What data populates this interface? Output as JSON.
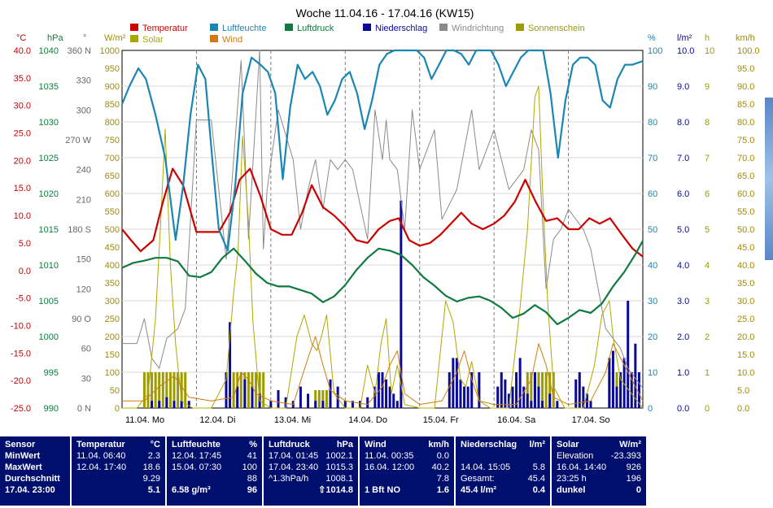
{
  "chart_data": {
    "type": "line",
    "title": "Woche 11.04.16 - 17.04.16 (KW15)",
    "x_ticks": [
      "11.04.  Mo",
      "12.04.  Di",
      "13.04.  Mi",
      "14.04.  Do",
      "15.04.  Fr",
      "16.04.  Sa",
      "17.04.  So"
    ],
    "legend": [
      {
        "name": "Temperatur",
        "color": "#cc0000"
      },
      {
        "name": "Luftfeuchte",
        "color": "#1a86b4"
      },
      {
        "name": "Luftdruck",
        "color": "#107a40"
      },
      {
        "name": "Niederschlag",
        "color": "#0a0a9a"
      },
      {
        "name": "Windrichtung",
        "color": "#8a8a8a"
      },
      {
        "name": "Sonnenschein",
        "color": "#9c9c00"
      },
      {
        "name": "Solar",
        "color": "#a8a800"
      },
      {
        "name": "Wind",
        "color": "#d07a10"
      }
    ],
    "axes": {
      "temp": {
        "unit": "°C",
        "color": "#cc0000",
        "ticks": [
          "40.0",
          "35.0",
          "30.0",
          "25.0",
          "20.0",
          "15.0",
          "10.0",
          "5.0",
          "0.0",
          "-5.0",
          "-10.0",
          "-15.0",
          "-20.0",
          "-25.0"
        ],
        "range": [
          -25,
          40
        ]
      },
      "pressure": {
        "unit": "hPa",
        "color": "#107a40",
        "ticks": [
          "1040",
          "1035",
          "1030",
          "1025",
          "1020",
          "1015",
          "1010",
          "1005",
          "1000",
          "995",
          "990"
        ],
        "range": [
          990,
          1040
        ]
      },
      "winddir": {
        "unit": "°",
        "color": "#666666",
        "ticks": [
          "360 N",
          "330",
          "300",
          "270 W",
          "240",
          "210",
          "180 S",
          "150",
          "120",
          "90 O",
          "60",
          "30",
          "0 N"
        ],
        "range": [
          0,
          360
        ]
      },
      "solar": {
        "unit": "W/m²",
        "color": "#a08c00",
        "ticks": [
          "1000",
          "950",
          "900",
          "850",
          "800",
          "750",
          "700",
          "650",
          "600",
          "550",
          "500",
          "450",
          "400",
          "350",
          "300",
          "250",
          "200",
          "150",
          "100",
          "50",
          "0"
        ],
        "range": [
          0,
          1000
        ]
      },
      "humidity": {
        "unit": "%",
        "color": "#1a86b4",
        "ticks": [
          "100",
          "90",
          "80",
          "70",
          "60",
          "50",
          "40",
          "30",
          "20",
          "10",
          "0"
        ],
        "range": [
          0,
          100
        ]
      },
      "rain": {
        "unit": "l/m²",
        "color": "#0a0a9a",
        "ticks": [
          "10.0",
          "9.0",
          "8.0",
          "7.0",
          "6.0",
          "5.0",
          "4.0",
          "3.0",
          "2.0",
          "1.0",
          "0.0"
        ],
        "range": [
          0,
          10
        ]
      },
      "sun": {
        "unit": "h",
        "color": "#9c9c00",
        "ticks": [
          "10",
          "9",
          "8",
          "7",
          "6",
          "5",
          "4",
          "3",
          "2",
          "1",
          "0"
        ],
        "range": [
          0,
          10
        ]
      },
      "wind": {
        "unit": "km/h",
        "color": "#a08c00",
        "ticks": [
          "100.0",
          "95.0",
          "90.0",
          "85.0",
          "80.0",
          "75.0",
          "70.0",
          "65.0",
          "60.0",
          "55.0",
          "50.0",
          "45.0",
          "40.0",
          "35.0",
          "30.0",
          "25.0",
          "20.0",
          "15.0",
          "10.0",
          "5.0",
          "0.0"
        ],
        "range": [
          0,
          100
        ]
      }
    },
    "series": [
      {
        "name": "Temperatur",
        "axis": "temp",
        "color": "#cc0000",
        "x": [
          0,
          0.12,
          0.25,
          0.42,
          0.55,
          0.68,
          0.82,
          1.0,
          1.15,
          1.3,
          1.45,
          1.58,
          1.72,
          1.86,
          2.0,
          2.15,
          2.28,
          2.42,
          2.55,
          2.7,
          2.85,
          3.0,
          3.15,
          3.3,
          3.45,
          3.6,
          3.72,
          3.86,
          4.0,
          4.14,
          4.28,
          4.42,
          4.56,
          4.7,
          4.85,
          5.0,
          5.14,
          5.28,
          5.42,
          5.56,
          5.7,
          5.85,
          6.0,
          6.14,
          6.28,
          6.42,
          6.56,
          6.72,
          6.86,
          7.0
        ],
        "y": [
          7.5,
          5.5,
          3.5,
          5.5,
          12.5,
          18.5,
          15.5,
          7.0,
          7.0,
          7.0,
          10.5,
          16.5,
          18.5,
          13.5,
          7.5,
          6.5,
          6.5,
          10.5,
          15.5,
          11.5,
          10.0,
          8.0,
          5.5,
          5.0,
          7.5,
          9.0,
          9.5,
          5.5,
          4.5,
          5.0,
          6.5,
          8.5,
          10.5,
          8.5,
          7.5,
          8.5,
          10.0,
          12.5,
          16.5,
          12.5,
          9.0,
          9.5,
          7.5,
          7.5,
          9.5,
          8.5,
          9.5,
          6.5,
          4.0,
          2.5
        ]
      },
      {
        "name": "Luftfeuchte",
        "axis": "humidity",
        "color": "#1a86b4",
        "x": [
          0,
          0.1,
          0.22,
          0.32,
          0.45,
          0.58,
          0.72,
          0.82,
          0.92,
          1.02,
          1.12,
          1.22,
          1.3,
          1.42,
          1.52,
          1.62,
          1.74,
          1.86,
          1.96,
          2.06,
          2.16,
          2.26,
          2.36,
          2.46,
          2.56,
          2.66,
          2.76,
          2.86,
          2.96,
          3.06,
          3.16,
          3.26,
          3.36,
          3.46,
          3.56,
          3.66,
          3.76,
          3.86,
          3.96,
          4.06,
          4.16,
          4.26,
          4.36,
          4.46,
          4.56,
          4.66,
          4.76,
          4.86,
          4.96,
          5.06,
          5.16,
          5.26,
          5.36,
          5.46,
          5.56,
          5.66,
          5.76,
          5.86,
          5.96,
          6.06,
          6.16,
          6.26,
          6.36,
          6.46,
          6.56,
          6.66,
          6.76,
          6.86,
          7.0
        ],
        "y": [
          85,
          90,
          95,
          92,
          82,
          70,
          47,
          62,
          82,
          96,
          92,
          68,
          50,
          44,
          62,
          88,
          98,
          96,
          94,
          88,
          64,
          84,
          96,
          92,
          94,
          90,
          82,
          86,
          92,
          94,
          88,
          78,
          86,
          96,
          99,
          100,
          100,
          100,
          100,
          98,
          92,
          96,
          100,
          100,
          99,
          96,
          100,
          100,
          100,
          96,
          90,
          94,
          98,
          100,
          100,
          100,
          88,
          70,
          86,
          96,
          98,
          98,
          96,
          86,
          84,
          92,
          96,
          96,
          97
        ]
      },
      {
        "name": "Luftdruck",
        "axis": "pressure",
        "color": "#107a40",
        "x": [
          0,
          0.15,
          0.3,
          0.45,
          0.6,
          0.75,
          0.9,
          1.05,
          1.2,
          1.35,
          1.5,
          1.65,
          1.8,
          1.95,
          2.1,
          2.25,
          2.4,
          2.55,
          2.7,
          2.85,
          3.0,
          3.15,
          3.3,
          3.45,
          3.6,
          3.75,
          3.9,
          4.05,
          4.2,
          4.35,
          4.5,
          4.65,
          4.8,
          4.95,
          5.1,
          5.25,
          5.4,
          5.55,
          5.7,
          5.85,
          6.0,
          6.15,
          6.3,
          6.45,
          6.6,
          6.75,
          6.9,
          7.0
        ],
        "y": [
          1009.6,
          1010.3,
          1010.6,
          1011.0,
          1011.0,
          1010.5,
          1008.5,
          1008.3,
          1009.0,
          1011.0,
          1012.3,
          1010.6,
          1008.8,
          1007.5,
          1007.0,
          1007.0,
          1006.5,
          1006.0,
          1004.8,
          1005.6,
          1007.2,
          1009.3,
          1011.0,
          1012.3,
          1012.0,
          1011.4,
          1010.0,
          1008.3,
          1007.1,
          1005.7,
          1004.9,
          1005.4,
          1005.6,
          1005.0,
          1004.0,
          1002.6,
          1003.2,
          1004.4,
          1003.4,
          1001.7,
          1002.6,
          1003.7,
          1003.3,
          1004.6,
          1007.0,
          1009.0,
          1011.5,
          1013.4
        ]
      }
    ],
    "winddir_series": {
      "name": "Windrichtung",
      "axis": "winddir",
      "color": "#8a8a8a",
      "x": [
        0,
        0.2,
        0.3,
        0.4,
        0.5,
        0.6,
        0.75,
        0.85,
        1.0,
        1.2,
        1.4,
        1.6,
        1.7,
        1.85,
        1.9,
        1.95,
        2.1,
        2.3,
        2.4,
        2.5,
        2.6,
        2.7,
        2.8,
        2.9,
        3.0,
        3.1,
        3.3,
        3.4,
        3.5,
        3.55,
        3.6,
        3.7,
        3.8,
        3.9,
        4.0,
        4.2,
        4.3,
        4.5,
        4.7,
        4.8,
        5.0,
        5.2,
        5.3,
        5.4,
        5.5,
        5.6,
        5.7,
        5.8,
        5.9,
        6.0,
        6.2,
        6.3,
        6.5,
        6.7,
        6.8,
        7.0
      ],
      "y": [
        65,
        65,
        90,
        50,
        40,
        70,
        80,
        100,
        290,
        290,
        150,
        350,
        170,
        360,
        160,
        220,
        300,
        250,
        180,
        220,
        250,
        200,
        250,
        240,
        250,
        240,
        170,
        300,
        250,
        290,
        250,
        240,
        180,
        300,
        240,
        280,
        190,
        220,
        300,
        240,
        280,
        220,
        230,
        240,
        280,
        260,
        120,
        170,
        180,
        200,
        180,
        160,
        80,
        60,
        40,
        20
      ]
    },
    "solar_series": {
      "name": "Solar",
      "axis": "solar",
      "color": "#b0a800",
      "x": [
        0,
        0.2,
        0.35,
        0.45,
        0.52,
        0.58,
        0.65,
        0.72,
        0.8,
        0.95,
        1.2,
        1.4,
        1.5,
        1.56,
        1.62,
        1.7,
        1.76,
        1.85,
        2.0,
        2.2,
        2.35,
        2.45,
        2.55,
        2.62,
        2.68,
        2.75,
        2.85,
        3.0,
        3.2,
        3.3,
        3.4,
        3.48,
        3.55,
        3.62,
        3.7,
        3.8,
        4.0,
        4.2,
        4.35,
        4.45,
        4.55,
        4.62,
        4.7,
        4.8,
        4.95,
        5.2,
        5.35,
        5.45,
        5.55,
        5.6,
        5.65,
        5.72,
        5.8,
        5.95,
        6.2,
        6.35,
        6.45,
        6.55,
        6.6,
        6.7,
        6.85,
        7.0
      ],
      "y": [
        0,
        0,
        40,
        250,
        520,
        780,
        400,
        180,
        20,
        0,
        0,
        80,
        320,
        440,
        760,
        520,
        240,
        20,
        0,
        0,
        200,
        260,
        180,
        160,
        200,
        260,
        40,
        0,
        0,
        120,
        40,
        180,
        250,
        40,
        120,
        10,
        0,
        0,
        300,
        240,
        80,
        60,
        130,
        20,
        0,
        0,
        280,
        500,
        870,
        900,
        620,
        300,
        60,
        0,
        0,
        120,
        260,
        300,
        200,
        80,
        40,
        0
      ]
    },
    "wind_series": {
      "name": "Wind",
      "axis": "wind",
      "color": "#d07a10",
      "x": [
        0,
        0.3,
        0.5,
        0.7,
        0.9,
        1.2,
        1.5,
        1.6,
        1.7,
        1.8,
        2.0,
        2.3,
        2.5,
        2.6,
        2.7,
        2.8,
        3.0,
        3.3,
        3.5,
        3.6,
        3.7,
        3.8,
        4.0,
        4.3,
        4.5,
        4.6,
        4.7,
        4.8,
        5.0,
        5.3,
        5.5,
        5.6,
        5.7,
        5.8,
        6.0,
        6.3,
        6.5,
        6.6,
        6.7,
        6.9,
        7.0
      ],
      "y": [
        2,
        2,
        6,
        9,
        3,
        2,
        3,
        10,
        8,
        4,
        2,
        1,
        14,
        20,
        12,
        5,
        2,
        1,
        6,
        12,
        16,
        4,
        1,
        2,
        10,
        16,
        8,
        2,
        1,
        1,
        8,
        18,
        12,
        3,
        1,
        2,
        10,
        18,
        14,
        6,
        2
      ]
    },
    "rain_series": {
      "name": "Niederschlag",
      "axis": "rain",
      "color": "#0a0a9a",
      "x": [
        0.4,
        0.5,
        0.6,
        0.7,
        0.8,
        0.9,
        1.4,
        1.45,
        1.55,
        1.65,
        1.75,
        1.85,
        2.0,
        2.1,
        2.2,
        2.3,
        2.4,
        2.5,
        2.6,
        2.7,
        2.8,
        2.9,
        3.0,
        3.1,
        3.2,
        3.3,
        3.4,
        3.45,
        3.5,
        3.55,
        3.6,
        3.65,
        3.7,
        3.75,
        4.4,
        4.45,
        4.5,
        4.55,
        4.6,
        4.65,
        4.7,
        4.8,
        5.05,
        5.1,
        5.15,
        5.2,
        5.25,
        5.3,
        5.35,
        5.4,
        5.45,
        5.5,
        5.55,
        5.6,
        5.65,
        5.75,
        5.85,
        6.1,
        6.15,
        6.2,
        6.25,
        6.3,
        6.55,
        6.6,
        6.65,
        6.7,
        6.75,
        6.8,
        6.85,
        6.9,
        6.95
      ],
      "y": [
        0.2,
        0.2,
        0.3,
        0.2,
        0.2,
        0.2,
        1.0,
        2.4,
        0.6,
        0.8,
        0.6,
        0.4,
        0.2,
        0.5,
        0.3,
        0.2,
        0.6,
        0.4,
        0.2,
        0.2,
        0.8,
        0.6,
        0.2,
        0.2,
        0.2,
        0.3,
        0.6,
        1.0,
        1.0,
        0.8,
        0.6,
        0.4,
        0.2,
        5.8,
        1.0,
        1.4,
        1.4,
        0.8,
        0.6,
        0.6,
        1.0,
        1.0,
        0.6,
        1.0,
        0.8,
        0.4,
        0.6,
        1.0,
        1.4,
        0.6,
        0.4,
        0.2,
        1.0,
        0.6,
        0.2,
        0.4,
        0.2,
        0.8,
        1.0,
        0.6,
        0.4,
        0.2,
        1.4,
        1.6,
        0.6,
        1.0,
        1.4,
        3.0,
        1.0,
        1.8,
        1.0
      ]
    },
    "sun_series": {
      "name": "Sonnenschein",
      "axis": "sun",
      "color": "#9c9c00",
      "x": [
        0.3,
        0.35,
        0.4,
        0.45,
        0.5,
        0.55,
        0.6,
        0.65,
        0.7,
        0.75,
        0.8,
        0.85,
        1.5,
        1.55,
        1.6,
        1.65,
        1.7,
        1.75,
        1.8,
        1.85,
        1.9,
        2.6,
        2.65,
        2.7,
        2.75,
        5.45,
        5.5,
        5.55,
        5.6,
        5.65,
        5.7,
        5.75,
        5.8,
        6.55,
        6.6,
        6.65,
        6.7
      ],
      "y": [
        1,
        1,
        1,
        1,
        1,
        1,
        1,
        1,
        1,
        1,
        1,
        1,
        1,
        1,
        1,
        1,
        1,
        1,
        1,
        1,
        1,
        0.5,
        0.5,
        0.5,
        0.5,
        1,
        1,
        1,
        1,
        1,
        1,
        1,
        1,
        1,
        1,
        1,
        1
      ]
    }
  },
  "table": {
    "sensor": {
      "header": "Sensor",
      "rows": [
        "MinWert",
        "MaxWert",
        "Durchschnitt",
        "17.04.  23:00"
      ]
    },
    "temperatur": {
      "header": "Temperatur",
      "unit": "°C",
      "rows": [
        [
          "11.04.  06:40",
          "2.3"
        ],
        [
          "12.04.  17:40",
          "18.6"
        ],
        [
          "",
          "9.29"
        ],
        [
          "",
          "5.1"
        ]
      ]
    },
    "luftfeuchte": {
      "header": "Luftfeuchte",
      "unit": "%",
      "rows": [
        [
          "12.04.  17:45",
          "41"
        ],
        [
          "15.04.  07:30",
          "100"
        ],
        [
          "",
          "88"
        ],
        [
          "6.58 g/m³",
          "96"
        ]
      ]
    },
    "luftdruck": {
      "header": "Luftdruck",
      "unit": "hPa",
      "rows": [
        [
          "17.04.  01:45",
          "1002.1"
        ],
        [
          "17.04.  23:40",
          "1015.3"
        ],
        [
          "^1.3hPa/h",
          "1008.1"
        ],
        [
          "",
          "⇧1014.8"
        ]
      ]
    },
    "wind": {
      "header": "Wind",
      "unit": "km/h",
      "rows": [
        [
          "11.04.  00:35",
          "0.0"
        ],
        [
          "16.04.  12:00",
          "40.2"
        ],
        [
          "",
          "7.8"
        ],
        [
          "1 Bft NO",
          "1.6"
        ]
      ]
    },
    "niederschlag": {
      "header": "Niederschlag",
      "unit": "l/m²",
      "rows": [
        [
          "",
          ""
        ],
        [
          "14.04.  15:05",
          "5.8"
        ],
        [
          "Gesamt:",
          "45.4"
        ],
        [
          "45.4 l/m²",
          "0.4"
        ]
      ]
    },
    "solar": {
      "header": "Solar",
      "unit": "W/m²",
      "rows": [
        [
          "Elevation",
          "-23.393"
        ],
        [
          "16.04.  14:40",
          "926"
        ],
        [
          "23:25 h",
          "196"
        ],
        [
          "dunkel",
          "0"
        ]
      ]
    }
  }
}
